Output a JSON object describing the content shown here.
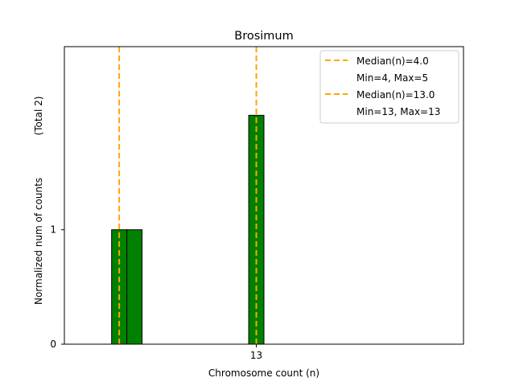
{
  "chart_data": {
    "type": "bar",
    "title": "Brosimum",
    "xlabel": "Chromosome count (n)",
    "ylabel": "Normalized num of counts",
    "ylabel_note": "(Total 2)",
    "xlim": [
      0.4,
      26.6
    ],
    "ylim": [
      0,
      2.6
    ],
    "x_ticks": [
      {
        "value": 13,
        "label": "13"
      }
    ],
    "y_ticks": [
      {
        "value": 0,
        "label": "0"
      },
      {
        "value": 1,
        "label": "1"
      }
    ],
    "series": [
      {
        "bars": [
          {
            "x": 4,
            "height": 1.0
          },
          {
            "x": 5,
            "height": 1.0
          }
        ],
        "color": "#008000"
      },
      {
        "bars": [
          {
            "x": 13,
            "height": 2.0
          }
        ],
        "color": "#008000"
      }
    ],
    "baseline": {
      "from": 0.4,
      "to": 9.0
    },
    "median_lines": [
      {
        "x": 4.0,
        "label": "Median(n)=4.0",
        "range_label": "Min=4, Max=5",
        "color": "#FFA500"
      },
      {
        "x": 13.0,
        "label": "Median(n)=13.0",
        "range_label": "Min=13, Max=13",
        "color": "#FFA500"
      }
    ],
    "legend_position": "top-right",
    "grid": false
  }
}
